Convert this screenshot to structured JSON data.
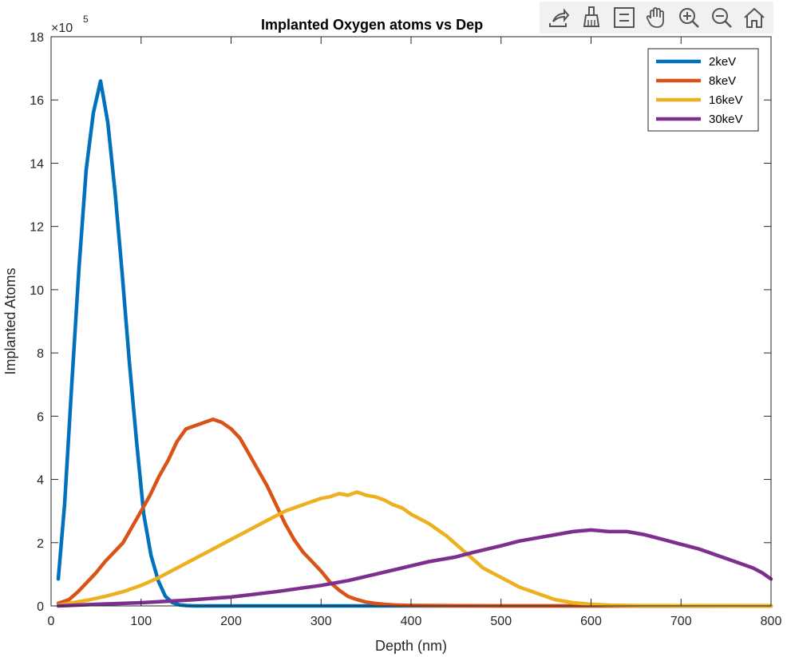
{
  "chart_data": {
    "type": "line",
    "title": "Implanted Oxygen atoms vs Depth",
    "title_visible": "Implanted Oxygen atoms vs Dep",
    "xlabel": "Depth (nm)",
    "ylabel": "Implanted Atoms",
    "xlim": [
      0,
      800
    ],
    "ylim": [
      0,
      1800000
    ],
    "y_exponent_label": "×10",
    "y_exponent_power": "5",
    "x_ticks": [
      0,
      100,
      200,
      300,
      400,
      500,
      600,
      700,
      800
    ],
    "x_tick_labels": [
      "0",
      "100",
      "200",
      "300",
      "400",
      "500",
      "600",
      "700",
      "800"
    ],
    "y_ticks": [
      0,
      200000,
      400000,
      600000,
      800000,
      1000000,
      1200000,
      1400000,
      1600000,
      1800000
    ],
    "y_tick_labels": [
      "0",
      "2",
      "4",
      "6",
      "8",
      "10",
      "12",
      "14",
      "16",
      "18"
    ],
    "grid": false,
    "legend_position": "top-right",
    "series": [
      {
        "name": "2keV",
        "color": "#0072BD",
        "x": [
          8,
          15,
          23,
          31,
          39,
          47,
          55,
          63,
          71,
          79,
          87,
          95,
          103,
          111,
          119,
          127,
          135,
          143,
          151,
          159,
          175,
          200,
          250,
          300,
          400,
          500,
          600,
          700,
          800
        ],
        "y": [
          85000,
          320000,
          700000,
          1070000,
          1380000,
          1560000,
          1660000,
          1530000,
          1310000,
          1050000,
          770000,
          520000,
          290000,
          160000,
          80000,
          30000,
          10000,
          3000,
          1000,
          0,
          0,
          0,
          0,
          0,
          0,
          0,
          0,
          0,
          0
        ]
      },
      {
        "name": "8keV",
        "color": "#D95319",
        "x": [
          8,
          20,
          30,
          40,
          50,
          60,
          70,
          80,
          90,
          100,
          110,
          120,
          130,
          140,
          150,
          160,
          170,
          180,
          190,
          200,
          210,
          220,
          230,
          240,
          250,
          260,
          270,
          280,
          290,
          300,
          310,
          320,
          330,
          340,
          350,
          360,
          370,
          380,
          400,
          450,
          500,
          600,
          700,
          800
        ],
        "y": [
          8000,
          20000,
          45000,
          75000,
          105000,
          140000,
          170000,
          200000,
          250000,
          300000,
          350000,
          410000,
          460000,
          520000,
          560000,
          570000,
          580000,
          590000,
          580000,
          560000,
          530000,
          480000,
          430000,
          380000,
          320000,
          260000,
          210000,
          170000,
          140000,
          110000,
          75000,
          50000,
          30000,
          20000,
          12000,
          8000,
          5000,
          3000,
          1500,
          500,
          0,
          0,
          0,
          0
        ]
      },
      {
        "name": "16keV",
        "color": "#EDB120",
        "x": [
          8,
          20,
          40,
          60,
          80,
          100,
          120,
          140,
          160,
          180,
          200,
          220,
          240,
          260,
          280,
          300,
          310,
          320,
          330,
          340,
          350,
          360,
          370,
          380,
          390,
          400,
          420,
          440,
          460,
          480,
          500,
          520,
          540,
          560,
          580,
          600,
          620,
          650,
          700,
          800
        ],
        "y": [
          2000,
          8000,
          18000,
          30000,
          45000,
          65000,
          90000,
          120000,
          150000,
          180000,
          210000,
          240000,
          270000,
          300000,
          320000,
          340000,
          345000,
          355000,
          350000,
          360000,
          350000,
          345000,
          335000,
          320000,
          310000,
          290000,
          260000,
          220000,
          170000,
          120000,
          90000,
          60000,
          40000,
          20000,
          10000,
          5000,
          2500,
          1000,
          500,
          0
        ]
      },
      {
        "name": "30keV",
        "color": "#7E2F8E",
        "x": [
          8,
          50,
          100,
          150,
          200,
          250,
          300,
          330,
          360,
          390,
          420,
          450,
          470,
          500,
          520,
          540,
          560,
          580,
          600,
          620,
          640,
          660,
          680,
          700,
          720,
          740,
          760,
          780,
          790,
          800
        ],
        "y": [
          0,
          5000,
          10000,
          18000,
          28000,
          45000,
          65000,
          80000,
          100000,
          120000,
          140000,
          155000,
          170000,
          190000,
          205000,
          215000,
          225000,
          235000,
          240000,
          235000,
          235000,
          225000,
          210000,
          195000,
          180000,
          160000,
          140000,
          120000,
          105000,
          85000
        ]
      }
    ]
  },
  "toolbar": {
    "buttons": [
      "export-icon",
      "brush-icon",
      "data-tips-icon",
      "pan-icon",
      "zoom-in-icon",
      "zoom-out-icon",
      "home-icon"
    ]
  }
}
